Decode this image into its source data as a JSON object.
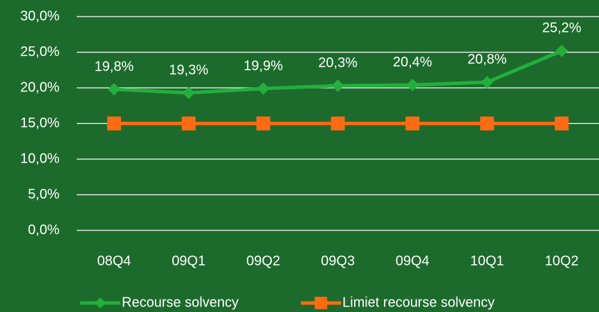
{
  "chart_data": {
    "type": "line",
    "categories": [
      "08Q4",
      "09Q1",
      "09Q2",
      "09Q3",
      "09Q4",
      "10Q1",
      "10Q2"
    ],
    "series": [
      {
        "name": "Recourse solvency",
        "color": "#22b03c",
        "marker": "diamond",
        "values": [
          19.8,
          19.3,
          19.9,
          20.3,
          20.4,
          20.8,
          25.2
        ],
        "value_labels": [
          "19,8%",
          "19,3%",
          "19,9%",
          "20,3%",
          "20,4%",
          "20,8%",
          "25,2%"
        ]
      },
      {
        "name": "Limiet recourse solvency",
        "color": "#ff6a13",
        "marker": "square",
        "values": [
          15,
          15,
          15,
          15,
          15,
          15,
          15
        ]
      }
    ],
    "ylim": [
      0,
      30
    ],
    "yticks": [
      {
        "value": 0,
        "label": "0,0%"
      },
      {
        "value": 5,
        "label": "5,0%"
      },
      {
        "value": 10,
        "label": "10,0%"
      },
      {
        "value": 15,
        "label": "15,0%"
      },
      {
        "value": 20,
        "label": "20,0%"
      },
      {
        "value": 25,
        "label": "25,0%"
      },
      {
        "value": 30,
        "label": "30,0%"
      }
    ],
    "grid": true,
    "legend": "bottom"
  }
}
